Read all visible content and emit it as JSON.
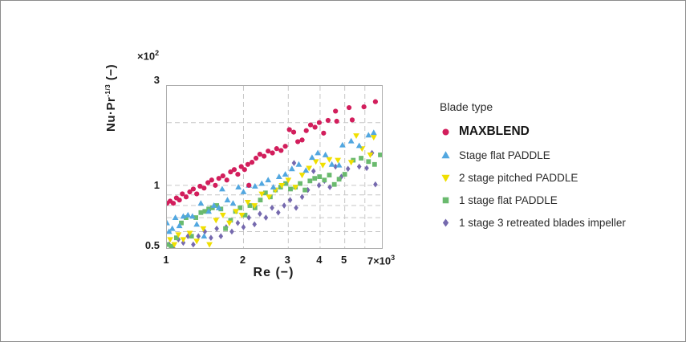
{
  "page": {
    "type": "log-log scatter chart with legend",
    "background": "#ffffff",
    "border_color": "#8c8c8c"
  },
  "chart_data": {
    "type": "scatter",
    "title": "",
    "x_axis": {
      "label_base": "Re",
      "label_rest": " (−)",
      "scale": "log",
      "min": 1,
      "max": 7,
      "unit_note": "values ×10³",
      "ticks": [
        {
          "v": 1,
          "t": "1"
        },
        {
          "v": 2,
          "t": "2"
        },
        {
          "v": 3,
          "t": "3"
        },
        {
          "v": 4,
          "t": "4"
        },
        {
          "v": 5,
          "t": "5"
        },
        {
          "v": 7,
          "t": "7×10",
          "sup": "3"
        }
      ],
      "gridlines": [
        2,
        3,
        4,
        5,
        6
      ]
    },
    "y_axis": {
      "label_base": "Nu·Pr",
      "label_sup": "-1/3",
      "label_rest": " (−)",
      "scale": "log",
      "min": 0.5,
      "max": 3,
      "scale_note_base": "×10",
      "scale_note_sup": "2",
      "ticks": [
        {
          "v": 3,
          "t": "3"
        },
        {
          "v": 1,
          "t": "1"
        },
        {
          "v": 0.5,
          "t": "0.5"
        }
      ],
      "gridlines": [
        0.6,
        0.7,
        0.8,
        0.9,
        1,
        2
      ]
    },
    "grid_color": "#c6c6c6",
    "series": [
      {
        "name": "MAXBLEND",
        "marker": "circle",
        "color": "#d21e5c",
        "emphasized": true,
        "points": [
          [
            1.0,
            0.82
          ],
          [
            1.03,
            0.84
          ],
          [
            1.06,
            0.82
          ],
          [
            1.09,
            0.87
          ],
          [
            1.12,
            0.85
          ],
          [
            1.15,
            0.91
          ],
          [
            1.19,
            0.88
          ],
          [
            1.23,
            0.93
          ],
          [
            1.27,
            0.96
          ],
          [
            1.31,
            0.91
          ],
          [
            1.35,
            0.99
          ],
          [
            1.4,
            0.97
          ],
          [
            1.45,
            1.03
          ],
          [
            1.5,
            1.06
          ],
          [
            1.55,
            1.0
          ],
          [
            1.6,
            1.08
          ],
          [
            1.66,
            1.11
          ],
          [
            1.72,
            1.06
          ],
          [
            1.78,
            1.16
          ],
          [
            1.84,
            1.19
          ],
          [
            1.9,
            1.13
          ],
          [
            1.96,
            1.23
          ],
          [
            2.02,
            1.19
          ],
          [
            2.08,
            1.26
          ],
          [
            2.1,
            1.0
          ],
          [
            2.16,
            1.29
          ],
          [
            2.24,
            1.35
          ],
          [
            2.32,
            1.41
          ],
          [
            2.41,
            1.38
          ],
          [
            2.5,
            1.46
          ],
          [
            2.6,
            1.43
          ],
          [
            2.7,
            1.5
          ],
          [
            2.81,
            1.47
          ],
          [
            2.92,
            1.54
          ],
          [
            3.03,
            1.85
          ],
          [
            3.15,
            1.8
          ],
          [
            3.27,
            1.62
          ],
          [
            3.4,
            1.65
          ],
          [
            3.53,
            1.83
          ],
          [
            3.67,
            1.95
          ],
          [
            3.82,
            1.9
          ],
          [
            3.97,
            2.0
          ],
          [
            4.13,
            1.78
          ],
          [
            4.3,
            2.05
          ],
          [
            4.6,
            2.27
          ],
          [
            4.65,
            2.03
          ],
          [
            5.2,
            2.36
          ],
          [
            5.35,
            2.06
          ],
          [
            5.95,
            2.38
          ],
          [
            6.6,
            2.52
          ]
        ]
      },
      {
        "name": "Stage flat PADDLE",
        "marker": "triangle-up",
        "color": "#52a7e0",
        "emphasized": false,
        "points": [
          [
            1.0,
            0.66
          ],
          [
            1.02,
            0.6
          ],
          [
            1.05,
            0.62
          ],
          [
            1.08,
            0.7
          ],
          [
            1.12,
            0.64
          ],
          [
            1.16,
            0.71
          ],
          [
            1.21,
            0.72
          ],
          [
            1.26,
            0.71
          ],
          [
            1.31,
            0.65
          ],
          [
            1.36,
            0.82
          ],
          [
            1.4,
            0.57
          ],
          [
            1.46,
            0.75
          ],
          [
            1.53,
            0.8
          ],
          [
            1.6,
            0.78
          ],
          [
            1.65,
            0.96
          ],
          [
            1.73,
            0.85
          ],
          [
            1.82,
            0.82
          ],
          [
            1.91,
            0.98
          ],
          [
            2.0,
            0.93
          ],
          [
            2.1,
            1.0
          ],
          [
            2.22,
            0.99
          ],
          [
            2.36,
            1.02
          ],
          [
            2.5,
            1.06
          ],
          [
            2.62,
            0.98
          ],
          [
            2.76,
            1.1
          ],
          [
            2.92,
            1.13
          ],
          [
            3.1,
            1.2
          ],
          [
            3.3,
            1.26
          ],
          [
            3.52,
            1.18
          ],
          [
            3.72,
            1.36
          ],
          [
            3.92,
            1.43
          ],
          [
            4.2,
            1.4
          ],
          [
            4.45,
            1.26
          ],
          [
            4.75,
            1.25
          ],
          [
            4.9,
            1.56
          ],
          [
            5.3,
            1.63
          ],
          [
            5.7,
            1.55
          ],
          [
            6.2,
            1.74
          ],
          [
            6.5,
            1.79
          ]
        ]
      },
      {
        "name": "2 stage pitched PADDLE",
        "marker": "triangle-down",
        "color": "#f0df00",
        "emphasized": false,
        "points": [
          [
            1.03,
            0.55
          ],
          [
            1.07,
            0.52
          ],
          [
            1.11,
            0.58
          ],
          [
            1.16,
            0.55
          ],
          [
            1.23,
            0.59
          ],
          [
            1.31,
            0.54
          ],
          [
            1.39,
            0.62
          ],
          [
            1.47,
            0.52
          ],
          [
            1.56,
            0.68
          ],
          [
            1.66,
            0.72
          ],
          [
            1.76,
            0.66
          ],
          [
            1.87,
            0.75
          ],
          [
            1.97,
            0.72
          ],
          [
            2.08,
            0.83
          ],
          [
            2.21,
            0.8
          ],
          [
            2.36,
            0.91
          ],
          [
            2.52,
            0.88
          ],
          [
            2.67,
            0.95
          ],
          [
            2.83,
            1.0
          ],
          [
            3.0,
            1.06
          ],
          [
            3.2,
            0.98
          ],
          [
            3.4,
            1.12
          ],
          [
            3.62,
            1.21
          ],
          [
            3.85,
            1.3
          ],
          [
            4.1,
            1.25
          ],
          [
            4.35,
            1.33
          ],
          [
            4.7,
            1.32
          ],
          [
            5.3,
            1.29
          ],
          [
            5.55,
            1.73
          ],
          [
            5.85,
            1.5
          ],
          [
            6.3,
            1.4
          ],
          [
            6.5,
            1.7
          ]
        ]
      },
      {
        "name": "1 stage flat PADDLE",
        "marker": "square",
        "color": "#6aba6e",
        "emphasized": false,
        "points": [
          [
            1.0,
            0.52
          ],
          [
            1.04,
            0.51
          ],
          [
            1.09,
            0.56
          ],
          [
            1.14,
            0.66
          ],
          [
            1.19,
            0.7
          ],
          [
            1.25,
            0.57
          ],
          [
            1.3,
            0.7
          ],
          [
            1.36,
            0.74
          ],
          [
            1.41,
            0.75
          ],
          [
            1.46,
            0.77
          ],
          [
            1.51,
            0.78
          ],
          [
            1.57,
            0.8
          ],
          [
            1.63,
            0.77
          ],
          [
            1.7,
            0.62
          ],
          [
            1.78,
            0.68
          ],
          [
            1.86,
            0.75
          ],
          [
            1.94,
            0.78
          ],
          [
            2.03,
            0.72
          ],
          [
            2.12,
            0.8
          ],
          [
            2.22,
            0.78
          ],
          [
            2.33,
            0.85
          ],
          [
            2.44,
            0.92
          ],
          [
            2.55,
            0.88
          ],
          [
            2.67,
            0.95
          ],
          [
            2.8,
            0.98
          ],
          [
            2.93,
            1.02
          ],
          [
            3.06,
            0.96
          ],
          [
            3.2,
            0.98
          ],
          [
            3.34,
            1.02
          ],
          [
            3.49,
            0.95
          ],
          [
            3.65,
            1.05
          ],
          [
            3.81,
            1.08
          ],
          [
            3.98,
            1.1
          ],
          [
            4.16,
            1.06
          ],
          [
            4.35,
            1.12
          ],
          [
            4.55,
            1.01
          ],
          [
            4.75,
            1.07
          ],
          [
            5.0,
            1.13
          ],
          [
            5.4,
            1.32
          ],
          [
            5.8,
            1.35
          ],
          [
            6.2,
            1.3
          ],
          [
            6.55,
            1.26
          ],
          [
            6.9,
            1.4
          ]
        ]
      },
      {
        "name": "1 stage 3 retreated blades impeller",
        "marker": "diamond",
        "color": "#7569ae",
        "emphasized": false,
        "points": [
          [
            1.02,
            0.52
          ],
          [
            1.06,
            0.5
          ],
          [
            1.11,
            0.55
          ],
          [
            1.16,
            0.53
          ],
          [
            1.21,
            0.57
          ],
          [
            1.27,
            0.52
          ],
          [
            1.33,
            0.57
          ],
          [
            1.41,
            0.6
          ],
          [
            1.49,
            0.56
          ],
          [
            1.57,
            0.62
          ],
          [
            1.63,
            0.57
          ],
          [
            1.71,
            0.63
          ],
          [
            1.8,
            0.6
          ],
          [
            1.9,
            0.66
          ],
          [
            2.0,
            0.63
          ],
          [
            2.1,
            0.7
          ],
          [
            2.21,
            0.65
          ],
          [
            2.32,
            0.73
          ],
          [
            2.45,
            0.7
          ],
          [
            2.59,
            0.78
          ],
          [
            2.74,
            0.74
          ],
          [
            2.89,
            0.8
          ],
          [
            3.05,
            0.85
          ],
          [
            3.16,
            1.28
          ],
          [
            3.22,
            0.78
          ],
          [
            3.4,
            0.88
          ],
          [
            3.58,
            0.95
          ],
          [
            3.77,
            1.17
          ],
          [
            3.96,
            1.0
          ],
          [
            4.16,
            1.05
          ],
          [
            4.37,
            0.98
          ],
          [
            4.6,
            1.23
          ],
          [
            4.85,
            1.1
          ],
          [
            5.15,
            1.2
          ],
          [
            5.7,
            1.23
          ],
          [
            6.1,
            1.21
          ],
          [
            6.4,
            1.43
          ],
          [
            6.6,
            1.01
          ]
        ]
      }
    ]
  },
  "legend": {
    "title": "Blade type"
  }
}
